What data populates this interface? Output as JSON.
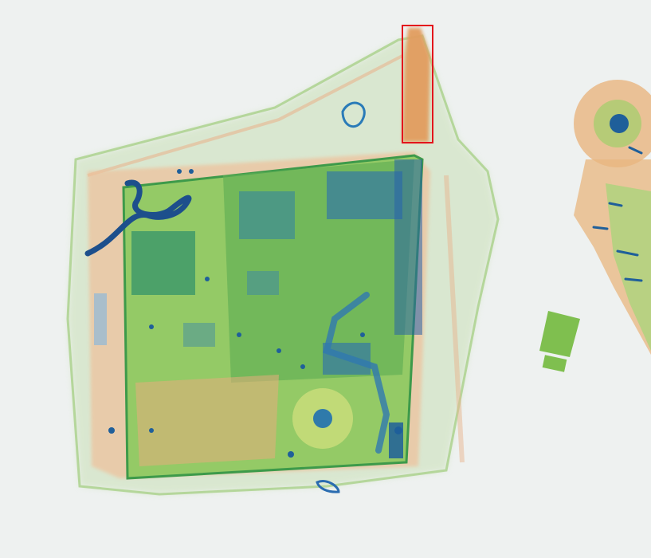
{
  "scene": {
    "type": "x-ray-baggage-scan",
    "colors": {
      "background": "#eef1f0",
      "organic": "#e9a56f",
      "mixed": "#7fbf55",
      "dense": "#1f6fb0",
      "annotation": "#e3141c"
    },
    "detections": [
      {
        "label_icon": "bounding-box-icon",
        "object_icon": "elongated-object-icon"
      }
    ]
  }
}
